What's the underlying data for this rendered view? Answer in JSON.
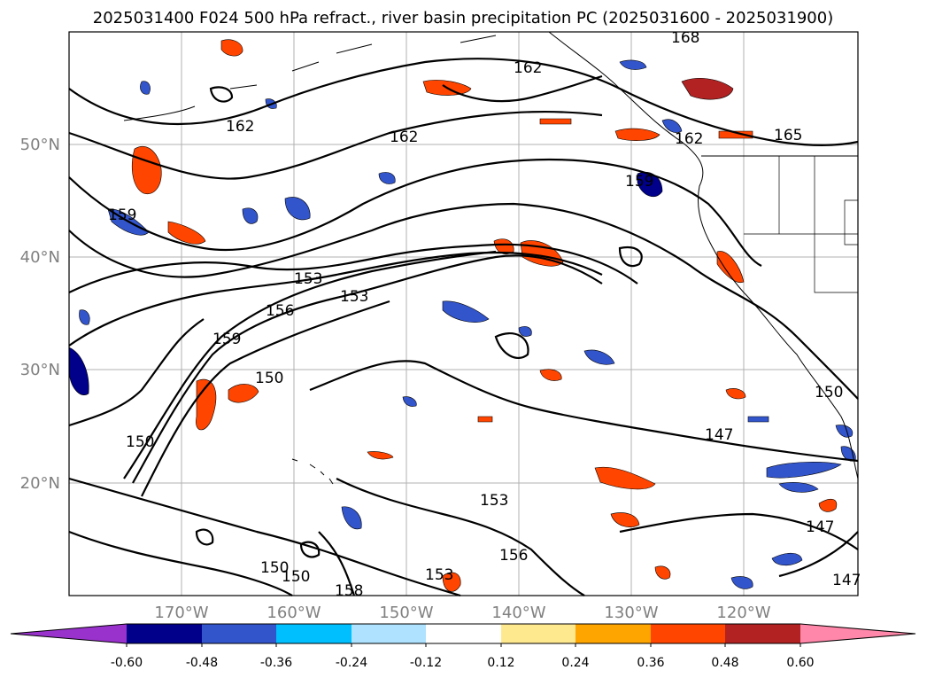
{
  "title": "2025031400 F024 500 hPa refract., river basin precipitation PC (2025031600 - 2025031900)",
  "lat_labels": [
    "50°N",
    "40°N",
    "30°N",
    "20°N"
  ],
  "lon_labels": [
    "170°W",
    "160°W",
    "150°W",
    "140°W",
    "130°W",
    "120°W"
  ],
  "contour_labels": [
    "168",
    "162",
    "162",
    "162",
    "162",
    "165",
    "159",
    "159",
    "153",
    "153",
    "156",
    "159",
    "150",
    "150",
    "150",
    "147",
    "153",
    "156",
    "150",
    "150",
    "153",
    "158",
    "147",
    "147"
  ],
  "colorbar": {
    "ticks": [
      "-0.60",
      "-0.48",
      "-0.36",
      "-0.24",
      "-0.12",
      "0.12",
      "0.24",
      "0.36",
      "0.48",
      "0.60"
    ],
    "colors": [
      "#9932cc",
      "#00008b",
      "#3355cc",
      "#00bfff",
      "#aee2ff",
      "#ffffff",
      "#ffe98f",
      "#ffa500",
      "#ff4500",
      "#b22222",
      "#ff88aa"
    ]
  }
}
